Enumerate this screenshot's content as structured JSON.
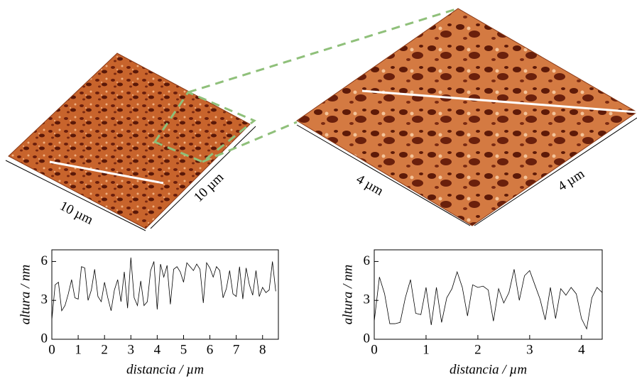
{
  "images": {
    "left": {
      "labels": [
        "10 µm",
        "10 µm"
      ]
    },
    "right": {
      "labels": [
        "4 µm",
        "4 µm"
      ]
    }
  },
  "chart_data": [
    {
      "type": "line",
      "xlabel": "distancia / µm",
      "ylabel": "altura / nm",
      "color": "#000000",
      "x": [
        0,
        0.125,
        0.25,
        0.375,
        0.5,
        0.625,
        0.75,
        0.875,
        1,
        1.125,
        1.25,
        1.375,
        1.5,
        1.625,
        1.75,
        1.875,
        2,
        2.125,
        2.25,
        2.375,
        2.5,
        2.625,
        2.75,
        2.875,
        3,
        3.125,
        3.25,
        3.375,
        3.5,
        3.625,
        3.75,
        3.875,
        4,
        4.125,
        4.25,
        4.375,
        4.5,
        4.625,
        4.75,
        4.875,
        5,
        5.125,
        5.25,
        5.375,
        5.5,
        5.625,
        5.75,
        5.875,
        6,
        6.125,
        6.25,
        6.375,
        6.5,
        6.625,
        6.75,
        6.875,
        7,
        7.125,
        7.25,
        7.375,
        7.5,
        7.625,
        7.75,
        7.875,
        8,
        8.125,
        8.25,
        8.375,
        8.5
      ],
      "values": [
        1.5,
        4.2,
        4.4,
        2.2,
        2.6,
        3.5,
        4.6,
        3.2,
        3.1,
        5.6,
        5.5,
        3.0,
        3.8,
        5.4,
        3.3,
        2.9,
        4.4,
        3.2,
        2.2,
        3.8,
        4.6,
        2.9,
        5.2,
        2.4,
        6.3,
        3.2,
        2.6,
        4.5,
        2.6,
        2.9,
        5.3,
        6.0,
        2.3,
        5.8,
        4.8,
        5.7,
        2.7,
        5.4,
        5.6,
        5.2,
        4.4,
        5.9,
        5.6,
        5.3,
        5.8,
        5.4,
        2.8,
        5.9,
        5.5,
        4.8,
        5.6,
        5.3,
        3.2,
        3.9,
        5.3,
        3.5,
        3.3,
        5.6,
        3.1,
        5.5,
        4.2,
        3.4,
        5.3,
        3.3,
        4.0,
        3.6,
        3.8,
        6.0,
        3.7
      ],
      "xlim": [
        0,
        8.6
      ],
      "xticks": [
        0,
        1,
        2,
        3,
        4,
        5,
        6,
        7,
        8
      ],
      "ylim": [
        0,
        6.9
      ],
      "yticks": [
        0,
        3,
        6
      ]
    },
    {
      "type": "line",
      "xlabel": "distancia / µm",
      "ylabel": "altura / nm",
      "color": "#000000",
      "x": [
        0,
        0.1,
        0.2,
        0.3,
        0.4,
        0.5,
        0.6,
        0.7,
        0.8,
        0.9,
        1,
        1.1,
        1.2,
        1.3,
        1.4,
        1.5,
        1.6,
        1.7,
        1.8,
        1.9,
        2,
        2.1,
        2.2,
        2.3,
        2.4,
        2.5,
        2.6,
        2.7,
        2.8,
        2.9,
        3,
        3.1,
        3.2,
        3.3,
        3.4,
        3.5,
        3.6,
        3.7,
        3.8,
        3.9,
        4,
        4.1,
        4.2,
        4.3,
        4.4
      ],
      "values": [
        1.4,
        4.8,
        3.5,
        1.2,
        1.2,
        1.3,
        3.2,
        4.6,
        2.0,
        1.9,
        4.0,
        1.1,
        4.0,
        1.3,
        3.2,
        3.9,
        5.2,
        4.0,
        1.8,
        4.2,
        4.0,
        4.1,
        3.8,
        1.4,
        3.9,
        2.8,
        3.6,
        5.4,
        3.0,
        4.9,
        5.3,
        4.2,
        3.1,
        1.5,
        4.0,
        1.6,
        3.9,
        3.4,
        4.0,
        3.5,
        1.6,
        0.8,
        3.2,
        4.0,
        3.6
      ],
      "xlim": [
        0,
        4.4
      ],
      "xticks": [
        0,
        1,
        2,
        3,
        4
      ],
      "ylim": [
        0,
        6.9
      ],
      "yticks": [
        0,
        3,
        6
      ]
    }
  ]
}
